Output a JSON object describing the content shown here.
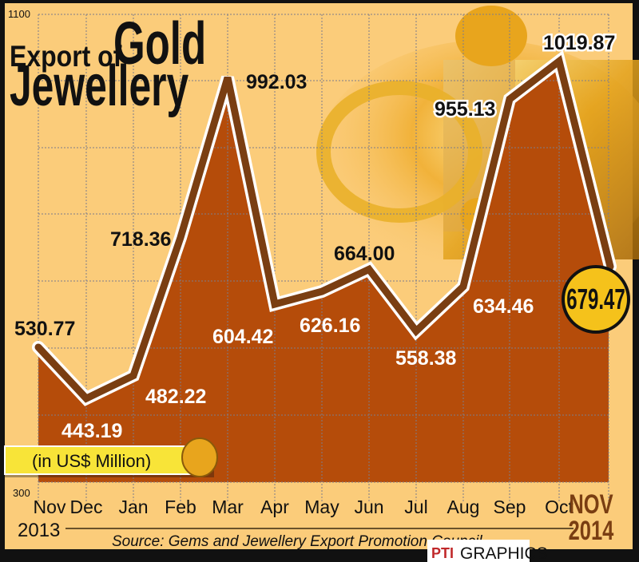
{
  "title": {
    "line1_small": "Export of",
    "line1_big": "Gold",
    "line2": "Jewellery"
  },
  "unit_label": "(in US$ Million)",
  "source": "Source: Gems and Jewellery Export Promotion Council",
  "credit": {
    "logo": "PTI",
    "text": "GRAPHICS"
  },
  "year_start": "2013",
  "final_month": {
    "month": "NOV",
    "year": "2014",
    "value_badge": "679.47"
  },
  "colors": {
    "background": "#fbcc7a",
    "fill": "#b54c0a",
    "line": "#7a3e12",
    "badge": "#f5c21b",
    "final_label": "#7a3e12"
  },
  "chart_data": {
    "type": "area",
    "title": "Export of Gold Jewellery",
    "ylabel": "US$ Million",
    "xlabel": "",
    "ylim": [
      300,
      1100
    ],
    "y_tick_labels": [
      "1100",
      "300"
    ],
    "grid": true,
    "categories": [
      "Nov",
      "Dec",
      "Jan",
      "Feb",
      "Mar",
      "Apr",
      "May",
      "Jun",
      "Jul",
      "Aug",
      "Sep",
      "Oct",
      "NOV"
    ],
    "values": [
      530.77,
      443.19,
      482.22,
      718.36,
      992.03,
      604.42,
      626.16,
      664.0,
      558.38,
      634.46,
      955.13,
      1019.87,
      679.47
    ],
    "labels": [
      "530.77",
      "443.19",
      "482.22",
      "718.36",
      "992.03",
      "604.42",
      "626.16",
      "664.00",
      "558.38",
      "634.46",
      "955.13",
      "1019.87",
      "679.47"
    ],
    "x_start_year": "2013",
    "x_end_year": "2014",
    "source": "Gems and Jewellery Export Promotion Council"
  }
}
